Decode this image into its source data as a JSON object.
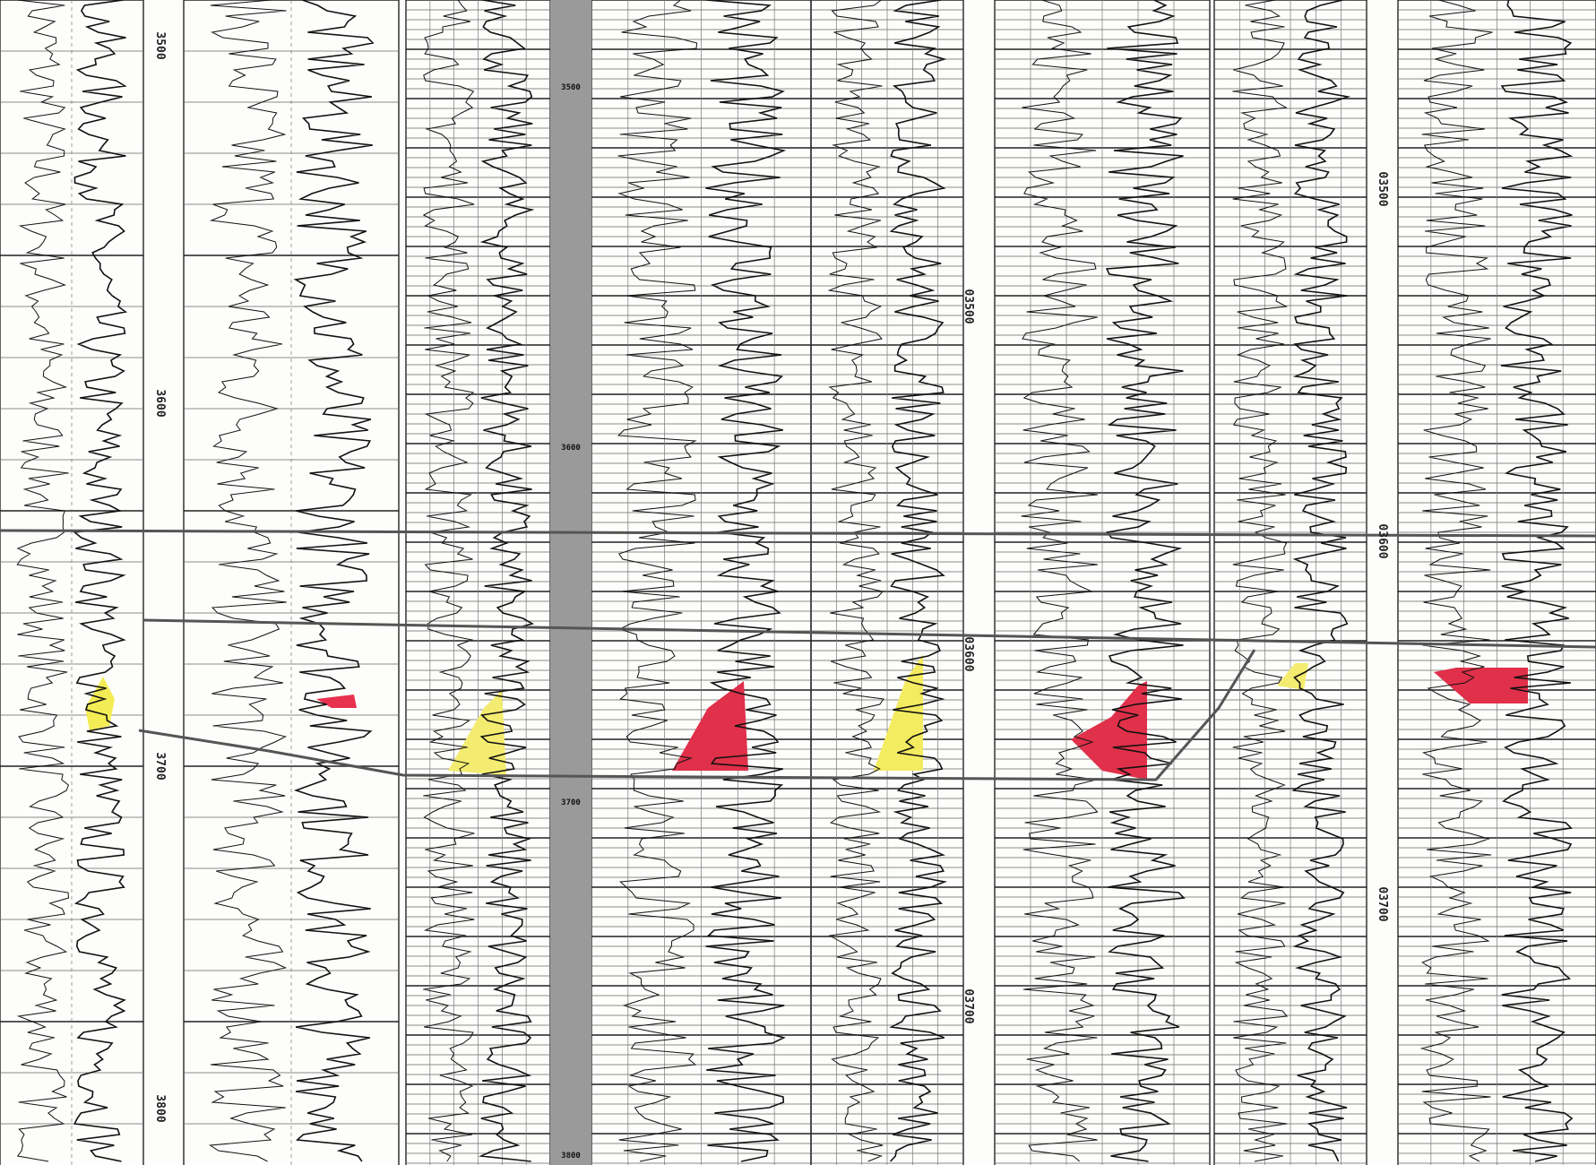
{
  "panels": [
    {
      "depth_labels": [
        "3500",
        "3600",
        "3700",
        "3800"
      ]
    },
    {
      "depth_labels": [
        "3500",
        "3600",
        "3700",
        "3800"
      ]
    },
    {
      "depth_labels": [
        "03500",
        "03600",
        "03700"
      ]
    },
    {
      "depth_labels": [
        "03500",
        "03600",
        "03700"
      ]
    }
  ]
}
